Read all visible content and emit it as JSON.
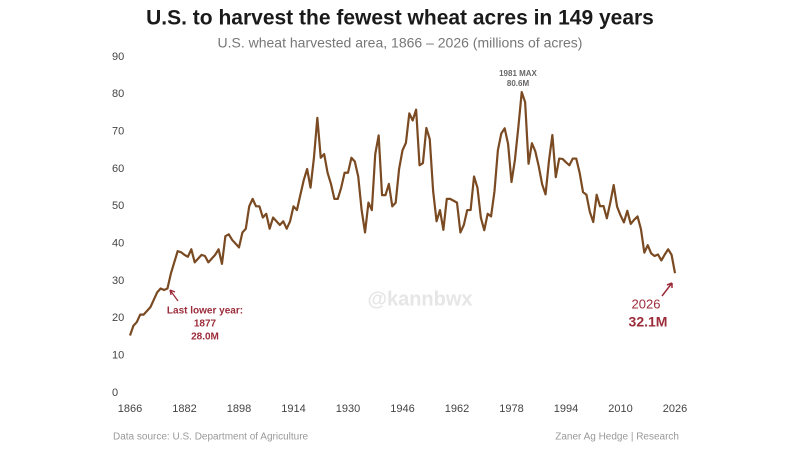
{
  "chart_data": {
    "type": "line",
    "title": "U.S. to harvest the fewest wheat acres in 149 years",
    "subtitle": "U.S. wheat harvested area, 1866 – 2026 (millions of acres)",
    "x": [
      1866,
      1867,
      1868,
      1869,
      1870,
      1871,
      1872,
      1873,
      1874,
      1875,
      1876,
      1877,
      1878,
      1879,
      1880,
      1881,
      1882,
      1883,
      1884,
      1885,
      1886,
      1887,
      1888,
      1889,
      1890,
      1891,
      1892,
      1893,
      1894,
      1895,
      1896,
      1897,
      1898,
      1899,
      1900,
      1901,
      1902,
      1903,
      1904,
      1905,
      1906,
      1907,
      1908,
      1909,
      1910,
      1911,
      1912,
      1913,
      1914,
      1915,
      1916,
      1917,
      1918,
      1919,
      1920,
      1921,
      1922,
      1923,
      1924,
      1925,
      1926,
      1927,
      1928,
      1929,
      1930,
      1931,
      1932,
      1933,
      1934,
      1935,
      1936,
      1937,
      1938,
      1939,
      1940,
      1941,
      1942,
      1943,
      1944,
      1945,
      1946,
      1947,
      1948,
      1949,
      1950,
      1951,
      1952,
      1953,
      1954,
      1955,
      1956,
      1957,
      1958,
      1959,
      1960,
      1961,
      1962,
      1963,
      1964,
      1965,
      1966,
      1967,
      1968,
      1969,
      1970,
      1971,
      1972,
      1973,
      1974,
      1975,
      1976,
      1977,
      1978,
      1979,
      1980,
      1981,
      1982,
      1983,
      1984,
      1985,
      1986,
      1987,
      1988,
      1989,
      1990,
      1991,
      1992,
      1993,
      1994,
      1995,
      1996,
      1997,
      1998,
      1999,
      2000,
      2001,
      2002,
      2003,
      2004,
      2005,
      2006,
      2007,
      2008,
      2009,
      2010,
      2011,
      2012,
      2013,
      2014,
      2015,
      2016,
      2017,
      2018,
      2019,
      2020,
      2021,
      2022,
      2023,
      2024,
      2025,
      2026
    ],
    "series": [
      {
        "name": "U.S. wheat harvested area",
        "color": "#7a4a22",
        "values": [
          15.4,
          18,
          19,
          21,
          21,
          22,
          23,
          25,
          27,
          28,
          27.6,
          28.0,
          32,
          35,
          38,
          37.7,
          37,
          36.5,
          38.5,
          35,
          36,
          37,
          36.7,
          35,
          36,
          37,
          38.5,
          34.6,
          42,
          42.5,
          41,
          40,
          39,
          43,
          44,
          50,
          52,
          50,
          50,
          47,
          48,
          44,
          47,
          46,
          45,
          46,
          44,
          46,
          50,
          49,
          53,
          57,
          60,
          55,
          63,
          73.7,
          63,
          64,
          59,
          56,
          52,
          52,
          55,
          59,
          59,
          63,
          62,
          58,
          49,
          43,
          51,
          49,
          64,
          69,
          53,
          53,
          56,
          50,
          51,
          60,
          65,
          67,
          74.9,
          73,
          75.9,
          61,
          61.6,
          71,
          68,
          54,
          46,
          49,
          43.7,
          52,
          52,
          51.5,
          51,
          43,
          45,
          49,
          49,
          58,
          55,
          47,
          43.6,
          48,
          47.3,
          54,
          65,
          69.5,
          70.9,
          66.7,
          56.5,
          62.4,
          71.1,
          80.6,
          77.9,
          61.4,
          66.9,
          64.7,
          60.7,
          55.9,
          53.2,
          62.2,
          69.1,
          57.8,
          62.8,
          62.7,
          61.8,
          61.0,
          62.8,
          62.8,
          59.0,
          53.8,
          53.1,
          48.5,
          45.8,
          53.1,
          50.0,
          50.1,
          46.8,
          51.0,
          55.7,
          49.9,
          47.6,
          45.7,
          48.8,
          45.3,
          46.4,
          47.3,
          43.9,
          37.6,
          39.6,
          37.4,
          36.7,
          37.1,
          35.5,
          37.1,
          38.5,
          37,
          32.1
        ]
      }
    ],
    "xlim": [
      1866,
      2026
    ],
    "xticks": [
      1866,
      1882,
      1898,
      1914,
      1930,
      1946,
      1962,
      1978,
      1994,
      2010,
      2026
    ],
    "ylim": [
      0,
      90
    ],
    "yticks": [
      0,
      10,
      20,
      30,
      40,
      50,
      60,
      70,
      80,
      90
    ],
    "grid": false,
    "annotations": {
      "max_label": "1981 MAX",
      "max_value": "80.6M",
      "low_intro": "Last lower year:",
      "low_year": "1877",
      "low_value": "28.0M",
      "last_year": "2026",
      "last_value": "32.1M"
    },
    "watermark": "@kannbwx",
    "source": "Data source: U.S. Department of Agriculture",
    "credit": "Zaner Ag Hedge | Research"
  }
}
